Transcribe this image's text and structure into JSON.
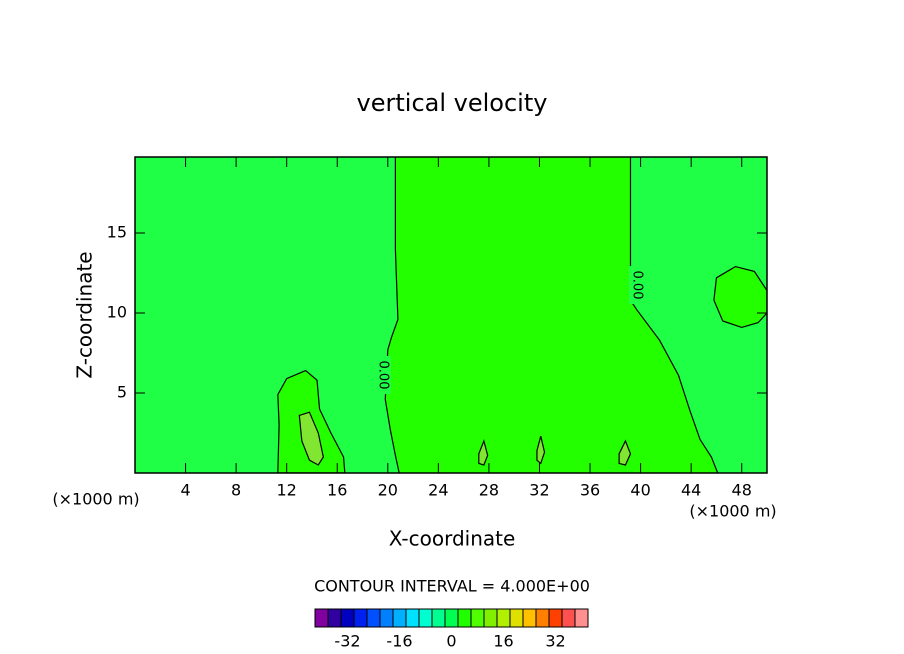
{
  "chart_data": {
    "type": "contour",
    "title": "vertical velocity",
    "xlabel": "X-coordinate",
    "ylabel": "Z-coordinate",
    "x_units": "(×1000 m)",
    "xlim": [
      0,
      50
    ],
    "ylim": [
      0,
      19.75
    ],
    "xticks": [
      4,
      8,
      12,
      16,
      20,
      24,
      28,
      32,
      36,
      40,
      44,
      48
    ],
    "yticks": [
      5,
      10,
      15
    ],
    "background_color": "#1fff45",
    "contours": [
      {
        "level": 0,
        "label": "0.00",
        "color": "#24ff00",
        "closed": false,
        "x": [
          20.6,
          20.6,
          20.8,
          20.3,
          20.0,
          19.8,
          20.2,
          20.6,
          20.9
        ],
        "y": [
          19.75,
          14,
          9.6,
          8.5,
          7.7,
          4.6,
          2.7,
          1.1,
          0
        ]
      },
      {
        "level": 0,
        "label": "0.00",
        "color": "#24ff00",
        "closed": false,
        "x": [
          39.2,
          39.2,
          39.7,
          41.5,
          43.0,
          43.9,
          44.7,
          45.6,
          46.1
        ],
        "y": [
          19.75,
          10.8,
          10.2,
          8.3,
          6.1,
          3.9,
          2.1,
          1.0,
          0
        ]
      },
      {
        "level": 0,
        "color": "#24ff00",
        "closed": true,
        "x": [
          50,
          49,
          47.5,
          46,
          45.8,
          46.5,
          48,
          49.3,
          50
        ],
        "y": [
          11.4,
          12.6,
          12.9,
          12.2,
          10.8,
          9.5,
          9.1,
          9.4,
          10
        ]
      },
      {
        "level": 0,
        "color": "#24ff00",
        "closed": true,
        "x": [
          11.3,
          11.4,
          11.3,
          12,
          13.5,
          14.4,
          14.6,
          15.5,
          16.5,
          16.6
        ],
        "y": [
          0,
          3,
          4.9,
          5.9,
          6.4,
          5.8,
          4,
          2.5,
          1,
          0
        ]
      },
      {
        "level": 4,
        "color": "#80e632",
        "closed": true,
        "x": [
          13,
          13.8,
          14.5,
          14.9,
          14.5,
          13.8,
          13.2
        ],
        "y": [
          3.6,
          3.8,
          2.5,
          1,
          0.5,
          0.8,
          2
        ]
      },
      {
        "level": 4,
        "color": "#80e632",
        "closed": true,
        "x": [
          27.2,
          27.6,
          27.9,
          27.6,
          27.2
        ],
        "y": [
          1.2,
          2.0,
          1.1,
          0.5,
          0.6
        ]
      },
      {
        "level": 4,
        "color": "#80e632",
        "closed": true,
        "x": [
          31.8,
          32.1,
          32.4,
          32.1,
          31.8
        ],
        "y": [
          1.4,
          2.3,
          1.3,
          0.6,
          0.8
        ]
      },
      {
        "level": 4,
        "color": "#80e632",
        "closed": true,
        "x": [
          38.3,
          38.8,
          39.2,
          38.8,
          38.3
        ],
        "y": [
          1.2,
          2.0,
          1.2,
          0.5,
          0.6
        ]
      }
    ],
    "contour_interval_label": "CONTOUR INTERVAL = 4.000E+00",
    "colorbar": {
      "clim": [
        -42,
        42
      ],
      "colors": [
        "#8000a0",
        "#3000a0",
        "#0000c0",
        "#0020f0",
        "#0050ff",
        "#0080ff",
        "#00b0ff",
        "#00e0ff",
        "#00ffd0",
        "#00ff90",
        "#00ff50",
        "#20ff00",
        "#50ff00",
        "#80f000",
        "#b0f000",
        "#e0e000",
        "#ffc000",
        "#ff8000",
        "#ff4000",
        "#ff5050",
        "#ff9090"
      ],
      "ticks": [
        -32,
        -16,
        0,
        16,
        32
      ]
    }
  }
}
